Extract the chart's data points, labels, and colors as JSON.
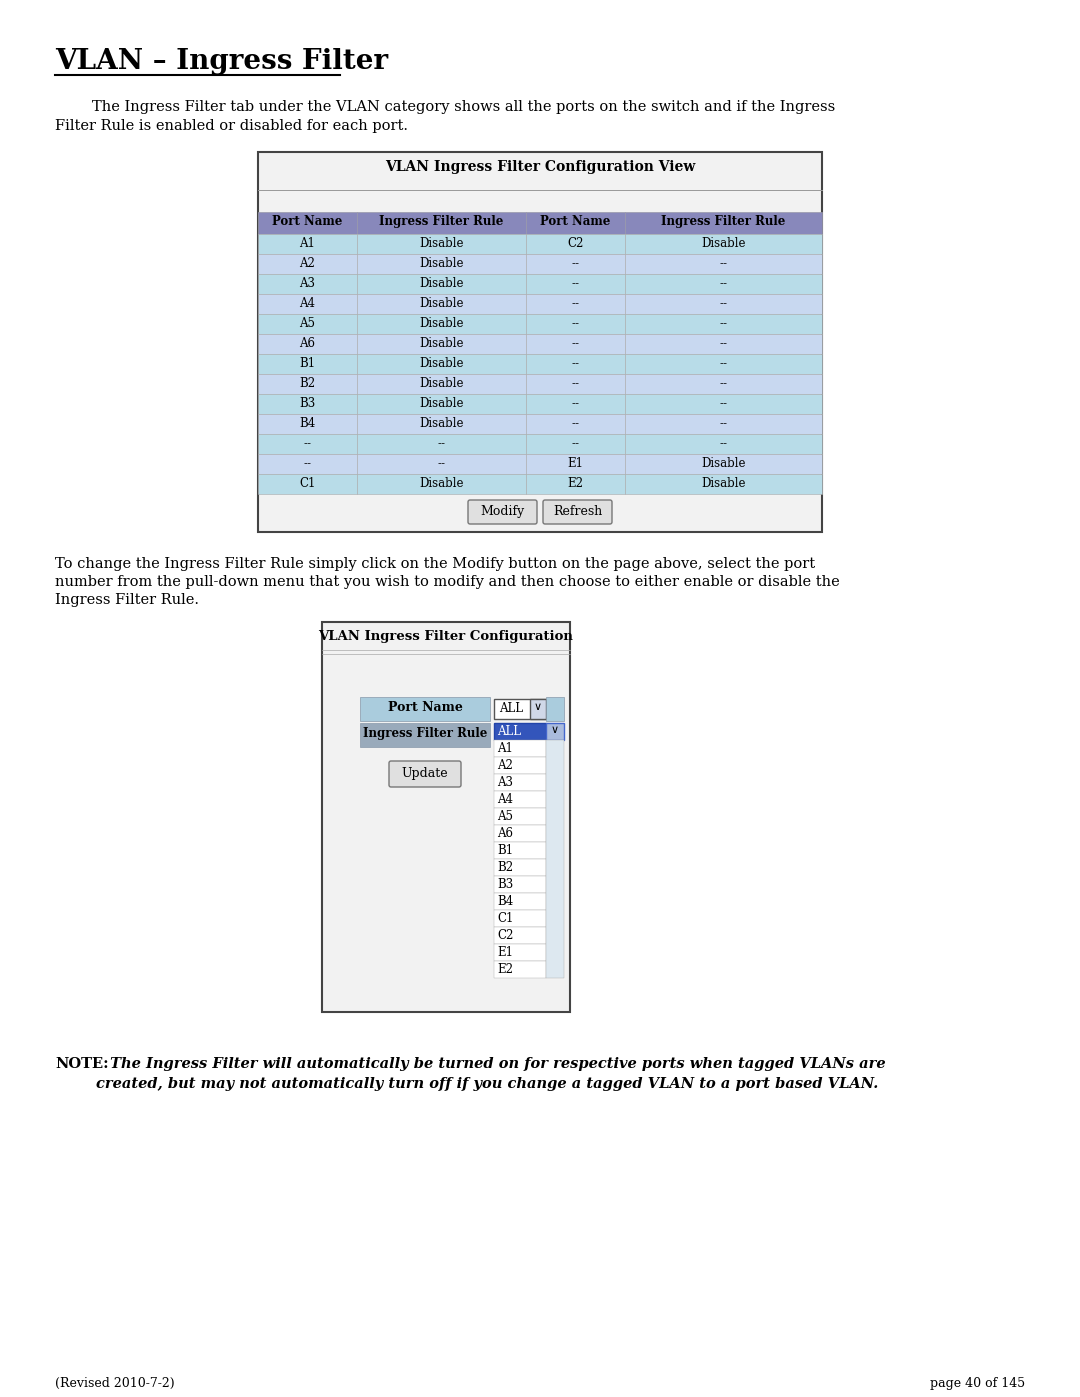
{
  "title": "VLAN – Ingress Filter",
  "page_bg": "#ffffff",
  "intro_line1": "        The Ingress Filter tab under the VLAN category shows all the ports on the switch and if the Ingress",
  "intro_line2": "Filter Rule is enabled or disabled for each port.",
  "table1_title": "VLAN Ingress Filter Configuration View",
  "table1_headers": [
    "Port Name",
    "Ingress Filter Rule",
    "Port Name",
    "Ingress Filter Rule"
  ],
  "table1_rows": [
    [
      "A1",
      "Disable",
      "C2",
      "Disable"
    ],
    [
      "A2",
      "Disable",
      "--",
      "--"
    ],
    [
      "A3",
      "Disable",
      "--",
      "--"
    ],
    [
      "A4",
      "Disable",
      "--",
      "--"
    ],
    [
      "A5",
      "Disable",
      "--",
      "--"
    ],
    [
      "A6",
      "Disable",
      "--",
      "--"
    ],
    [
      "B1",
      "Disable",
      "--",
      "--"
    ],
    [
      "B2",
      "Disable",
      "--",
      "--"
    ],
    [
      "B3",
      "Disable",
      "--",
      "--"
    ],
    [
      "B4",
      "Disable",
      "--",
      "--"
    ],
    [
      "--",
      "--",
      "--",
      "--"
    ],
    [
      "--",
      "--",
      "E1",
      "Disable"
    ],
    [
      "C1",
      "Disable",
      "E2",
      "Disable"
    ]
  ],
  "table1_header_bg": "#8888bb",
  "table1_row_bg_a": "#b8dce8",
  "table1_row_bg_b": "#c8d8f0",
  "table2_title": "VLAN Ingress Filter Configuration",
  "table2_port_label": "Port Name",
  "table2_ingress_label": "Ingress Filter Rule",
  "table2_dropdown_items": [
    "ALL",
    "A1",
    "A2",
    "A3",
    "A4",
    "A5",
    "A6",
    "B1",
    "B2",
    "B3",
    "B4",
    "C1",
    "C2",
    "E1",
    "E2"
  ],
  "table2_update_button": "Update",
  "middle_line1": "To change the Ingress Filter Rule simply click on the Modify button on the page above, select the port",
  "middle_line2": "number from the pull-down menu that you wish to modify and then choose to either enable or disable the",
  "middle_line3": "Ingress Filter Rule.",
  "note_bold": "NOTE:",
  "note_italic1": " The Ingress Filter will automatically be turned on for respective ports when tagged VLANs are",
  "note_italic2": "        created, but may not automatically turn off if you change a tagged VLAN to a port based VLAN.",
  "footer_left": "(Revised 2010-7-2)",
  "footer_right": "page 40 of 145",
  "border_color": "#444444",
  "btn_face": "#e0e0e0",
  "btn_edge": "#777777",
  "list_border": "#888888"
}
